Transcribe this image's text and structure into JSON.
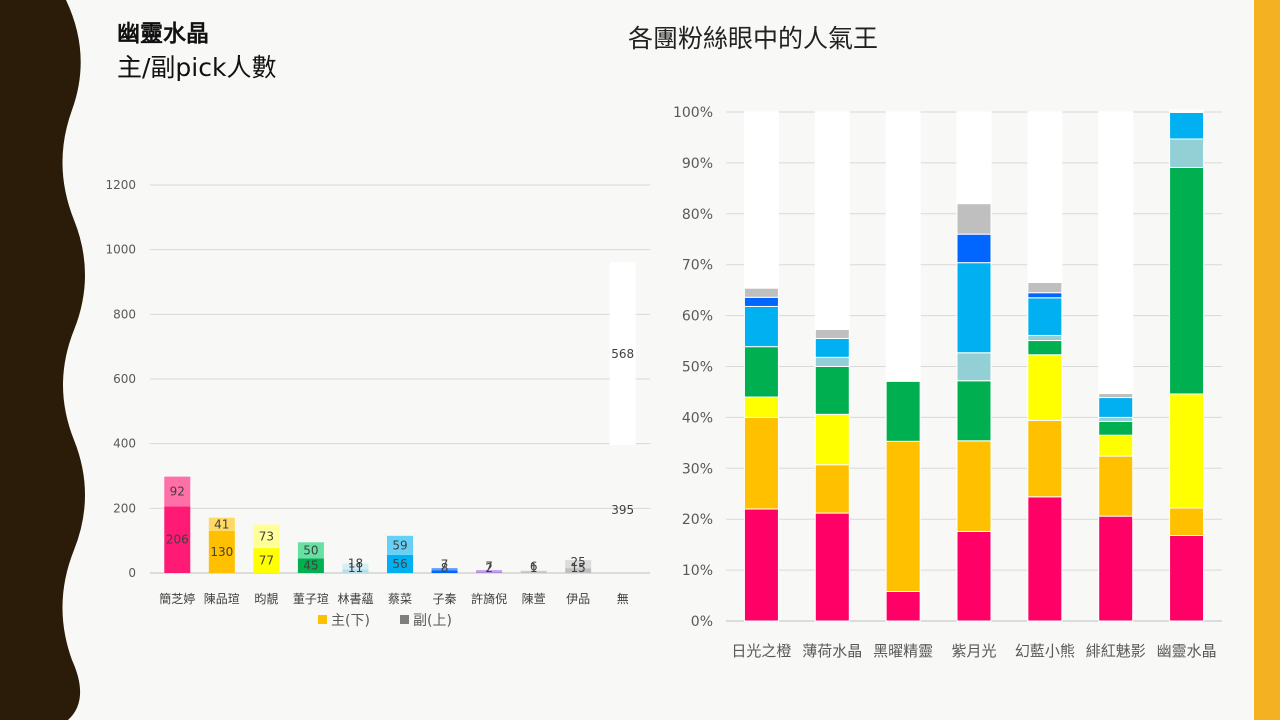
{
  "slide": {
    "title": "幽靈水晶",
    "subtitle": "主/副pick人數",
    "right_title": "各團粉絲眼中的人氣王",
    "colors": {
      "left_band": "#2a1c08",
      "right_band": "#f4b223",
      "background": "#f8f8f6"
    }
  },
  "chart_data": [
    {
      "type": "bar",
      "stacked": true,
      "categories": [
        "簡芝婷",
        "陳品瑄",
        "昀靚",
        "董子瑄",
        "林書蘊",
        "蔡菜",
        "子秦",
        "許旖倪",
        "陳萱",
        "伊品",
        "無"
      ],
      "series": [
        {
          "name": "主(下)",
          "values": [
            206,
            130,
            77,
            45,
            11,
            56,
            8,
            2,
            1,
            15,
            395
          ],
          "colors": [
            "#ff1a75",
            "#ffc000",
            "#ffff00",
            "#00b050",
            "#b7dde8",
            "#00b0f0",
            "#0066ff",
            "#9966cc",
            "#a6a6a6",
            "#bfbfbf",
            "#ffffff"
          ]
        },
        {
          "name": "副(上)",
          "values": [
            92,
            41,
            73,
            50,
            18,
            59,
            7,
            7,
            6,
            25,
            568
          ],
          "colors": [
            "#ff6fa8",
            "#ffd966",
            "#ffff99",
            "#66e0a3",
            "#d6eef5",
            "#66d0f7",
            "#5c9dff",
            "#c3a3e6",
            "#cfcfcf",
            "#dcdcdc",
            "#ffffff"
          ]
        }
      ],
      "yticks": [
        0,
        200,
        400,
        600,
        800,
        1000,
        1200
      ],
      "ylim": [
        0,
        1200
      ],
      "legend": [
        {
          "name": "主(下)",
          "color": "#ffc000"
        },
        {
          "name": "副(上)",
          "color": "#7f7f7f"
        }
      ],
      "legend_position": "bottom",
      "grid": true
    },
    {
      "type": "bar",
      "stacked": true,
      "percent": true,
      "categories": [
        "日光之橙",
        "薄荷水晶",
        "黑曜精靈",
        "紫月光",
        "幻藍小熊",
        "緋紅魅影",
        "幽靈水晶"
      ],
      "yticks": [
        "0%",
        "10%",
        "20%",
        "30%",
        "40%",
        "50%",
        "60%",
        "70%",
        "80%",
        "90%",
        "100%"
      ],
      "ylim": [
        0,
        100
      ],
      "grid": true,
      "series": [
        {
          "color": "#ff0066",
          "values": [
            22.0,
            21.2,
            5.8,
            17.6,
            24.4,
            20.6,
            16.8
          ]
        },
        {
          "color": "#ffc000",
          "values": [
            18.0,
            9.5,
            29.5,
            17.8,
            15.0,
            11.8,
            5.4
          ]
        },
        {
          "color": "#ffff00",
          "values": [
            4.0,
            9.9,
            0,
            0,
            12.9,
            4.1,
            22.4
          ]
        },
        {
          "color": "#00b050",
          "values": [
            9.9,
            9.4,
            11.8,
            11.8,
            2.8,
            2.7,
            44.5
          ]
        },
        {
          "color": "#92d0d6",
          "values": [
            0,
            1.8,
            0,
            5.5,
            1.0,
            0.8,
            5.6
          ]
        },
        {
          "color": "#00b0f0",
          "values": [
            7.9,
            3.7,
            0,
            17.7,
            7.4,
            3.9,
            5.2
          ]
        },
        {
          "color": "#0066ff",
          "values": [
            1.8,
            0,
            0,
            5.6,
            1.0,
            0,
            0
          ]
        },
        {
          "color": "#bfbfbf",
          "values": [
            1.8,
            1.8,
            0,
            6.0,
            2.0,
            0.8,
            0
          ]
        },
        {
          "color": "#ffffff",
          "values": [
            34.6,
            42.7,
            52.9,
            18.0,
            33.5,
            55.3,
            0.5
          ]
        }
      ]
    }
  ]
}
